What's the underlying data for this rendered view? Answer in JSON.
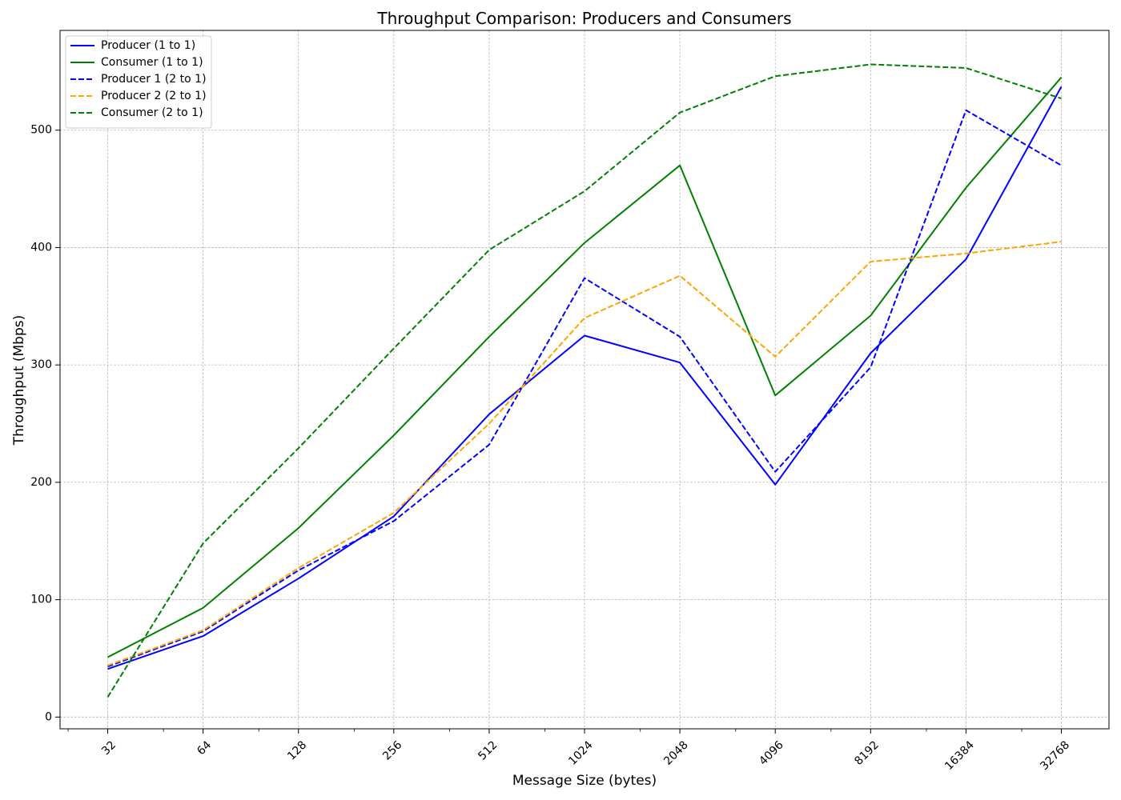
{
  "chart_data": {
    "type": "line",
    "title": "Throughput Comparison: Producers and Consumers",
    "xlabel": "Message Size (bytes)",
    "ylabel": "Throughput (Mbps)",
    "x_scale": "log2",
    "x": [
      32,
      64,
      128,
      256,
      512,
      1024,
      2048,
      4096,
      8192,
      16384,
      32768
    ],
    "x_tick_labels": [
      "32",
      "64",
      "128",
      "256",
      "512",
      "1024",
      "2048",
      "4096",
      "8192",
      "16384",
      "32768"
    ],
    "y_ticks": [
      0,
      100,
      200,
      300,
      400,
      500
    ],
    "ylim": [
      -10,
      585
    ],
    "grid": true,
    "legend_position": "upper-left",
    "series": [
      {
        "name": "Producer (1 to 1)",
        "color": "#0000ff",
        "linestyle": "solid",
        "values": [
          41,
          69,
          118,
          171,
          258,
          325,
          302,
          198,
          310,
          390,
          537
        ]
      },
      {
        "name": "Consumer (1 to 1)",
        "color": "#008000",
        "linestyle": "solid",
        "values": [
          51,
          93,
          161,
          240,
          324,
          404,
          470,
          274,
          342,
          451,
          545
        ]
      },
      {
        "name": "Producer 1 (2 to 1)",
        "color": "#0000ff",
        "linestyle": "dashed",
        "values": [
          43,
          73,
          125,
          167,
          232,
          374,
          324,
          209,
          298,
          517,
          470
        ]
      },
      {
        "name": "Producer 2 (2 to 1)",
        "color": "#ffa500",
        "linestyle": "dashed",
        "values": [
          44,
          74,
          127,
          174,
          250,
          340,
          376,
          307,
          388,
          395,
          405
        ]
      },
      {
        "name": "Consumer (2 to 1)",
        "color": "#008000",
        "linestyle": "dashed",
        "values": [
          17,
          148,
          229,
          314,
          398,
          448,
          515,
          546,
          556,
          553,
          527
        ]
      }
    ]
  }
}
